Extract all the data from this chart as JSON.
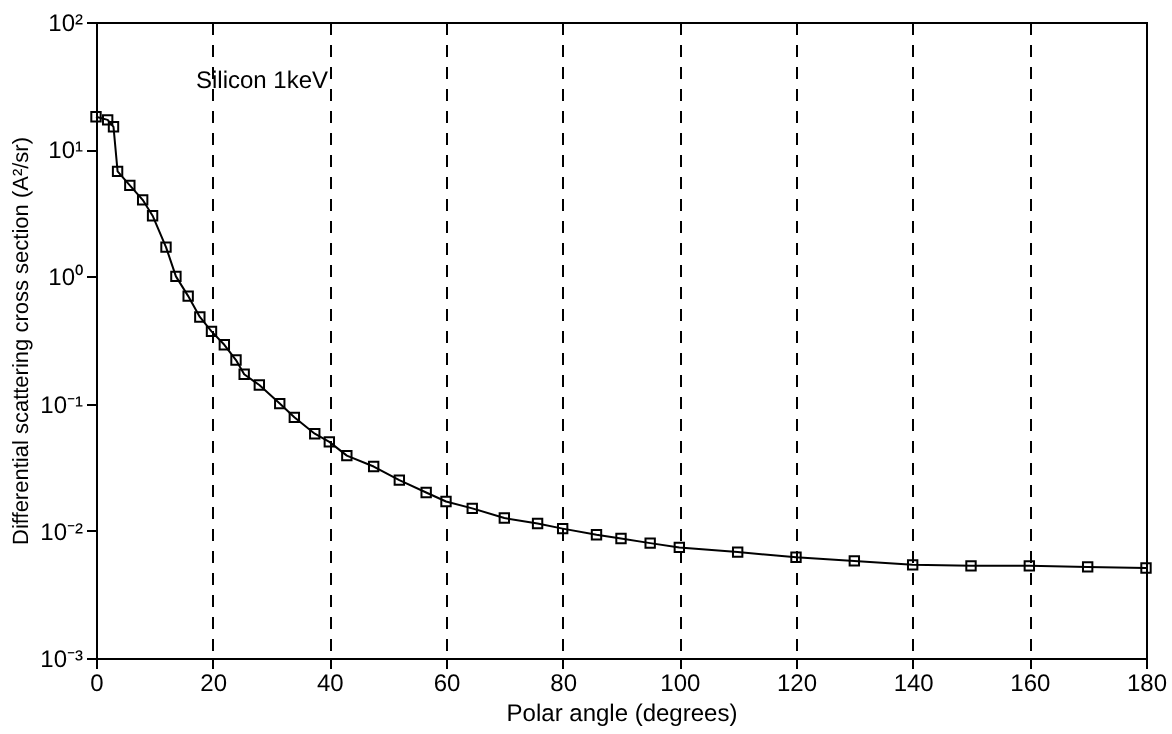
{
  "chart_data": {
    "type": "line",
    "xlabel": "Polar angle (degrees)",
    "ylabel": "Differential scattering cross section (A²/sr)",
    "annotations": [
      "Silicon 1keV"
    ],
    "log": "y",
    "grid": "x",
    "marker": "square",
    "line_style": "solid",
    "xlim": [
      0,
      180
    ],
    "xticks": [
      0,
      20,
      40,
      60,
      80,
      100,
      120,
      140,
      160,
      180
    ],
    "ylim": [
      0.001,
      100
    ],
    "yticks": [
      {
        "value": 0.001,
        "label": "10⁻³"
      },
      {
        "value": 0.01,
        "label": "10⁻²"
      },
      {
        "value": 0.1,
        "label": "10⁻¹"
      },
      {
        "value": 1,
        "label": "10⁰"
      },
      {
        "value": 10,
        "label": "10¹"
      },
      {
        "value": 100,
        "label": "10²"
      }
    ],
    "series": [
      {
        "color": "#000000",
        "x": [
          0,
          2,
          3,
          3.7,
          5.8,
          8,
          9.7,
          12,
          13.7,
          15.8,
          17.8,
          19.8,
          22,
          24,
          25.4,
          28,
          31.5,
          34,
          37.5,
          40,
          43,
          47.6,
          52,
          56.6,
          60,
          64.5,
          70,
          75.7,
          80,
          85.8,
          90,
          95,
          100,
          110,
          120,
          130,
          140,
          150,
          160,
          170,
          180
        ],
        "values": [
          18,
          17,
          15,
          6.7,
          5.2,
          4.0,
          3.0,
          1.7,
          1.0,
          0.7,
          0.48,
          0.37,
          0.29,
          0.22,
          0.17,
          0.14,
          0.1,
          0.078,
          0.058,
          0.05,
          0.039,
          0.032,
          0.025,
          0.02,
          0.017,
          0.015,
          0.0126,
          0.0114,
          0.0104,
          0.0093,
          0.0087,
          0.008,
          0.0074,
          0.0068,
          0.0062,
          0.0058,
          0.0054,
          0.0053,
          0.0053,
          0.0052,
          0.0051
        ]
      }
    ]
  }
}
